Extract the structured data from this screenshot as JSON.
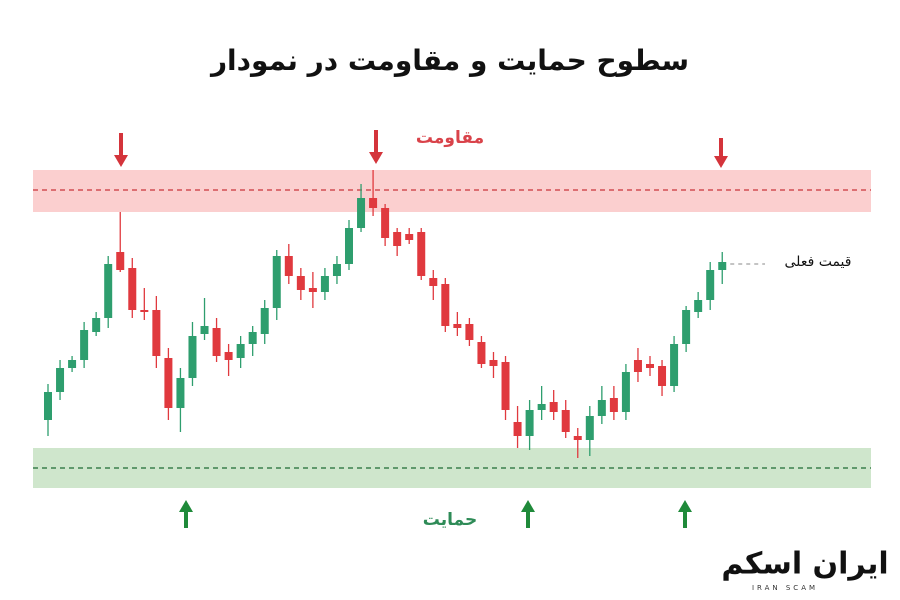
{
  "chart_data": {
    "type": "candlestick",
    "title": "سطوح حمایت و مقاومت در نمودار",
    "ylim": [
      0,
      100
    ],
    "up_color": "#2e9e6e",
    "down_color": "#e0393e",
    "open": [
      20,
      27,
      33,
      35,
      42,
      45.5,
      62,
      58,
      47.5,
      47.5,
      35.5,
      23,
      30.5,
      41.5,
      43,
      37,
      35.5,
      39,
      41.5,
      48,
      61,
      56,
      53,
      52,
      56,
      59,
      68,
      75.5,
      73,
      67,
      66.5,
      67,
      55.5,
      54,
      44,
      44,
      39.5,
      35,
      34.5,
      19.5,
      16,
      22.5,
      24.5,
      22.5,
      16,
      15,
      21,
      25.5,
      22,
      35,
      34,
      33.5,
      28.5,
      39,
      47,
      50,
      57.5
    ],
    "high": [
      29,
      35,
      36,
      44.5,
      47,
      61,
      72,
      60.5,
      53,
      51,
      38,
      33,
      44.5,
      50.5,
      45.5,
      39,
      41,
      43.5,
      50,
      62.5,
      64,
      58,
      57,
      58,
      61,
      70,
      79,
      82.5,
      74,
      68,
      68,
      68,
      57.5,
      55.5,
      47,
      45.5,
      41,
      37,
      36,
      23.5,
      25,
      28.5,
      27.5,
      25,
      18,
      23.5,
      28.5,
      28.5,
      34,
      38,
      36,
      35,
      41,
      48.5,
      52,
      59.5,
      62
    ],
    "low": [
      16,
      25,
      32,
      33,
      41,
      43,
      57,
      45.5,
      45,
      33,
      20,
      17,
      28.5,
      40,
      34.5,
      31,
      33,
      36,
      39,
      45,
      54,
      50,
      48,
      50,
      54,
      57.5,
      67,
      71,
      63.5,
      61,
      64,
      55,
      50,
      42,
      41,
      38.5,
      33,
      30.5,
      20,
      13,
      12.5,
      20,
      20,
      15.5,
      10.5,
      11,
      19,
      20,
      20,
      29.5,
      31,
      26,
      27,
      37,
      45.5,
      47.5,
      54
    ],
    "close": [
      27,
      33,
      35,
      42.5,
      45.5,
      59,
      57.5,
      47.5,
      47,
      36,
      23,
      30.5,
      41,
      43.5,
      36,
      35,
      39,
      42,
      48,
      61,
      56,
      52.5,
      52,
      56,
      59,
      68,
      75.5,
      73,
      65.5,
      63.5,
      65,
      56,
      53.5,
      43.5,
      43,
      40,
      34,
      33.5,
      22.5,
      16,
      22.5,
      24,
      22,
      17,
      15,
      21,
      25,
      22,
      32,
      32,
      33,
      28.5,
      39,
      47.5,
      50,
      57.5,
      59.5
    ],
    "resistance": {
      "label": "مقاومت",
      "level": 77.5,
      "zone": [
        72,
        82.5
      ]
    },
    "support": {
      "label": "حمایت",
      "level": 8,
      "zone": [
        3,
        13
      ]
    },
    "current_price": {
      "label": "قیمت فعلی",
      "level": 59
    }
  },
  "logo": {
    "name": "ایران اسکم",
    "tagline": "IRAN SCAM"
  }
}
